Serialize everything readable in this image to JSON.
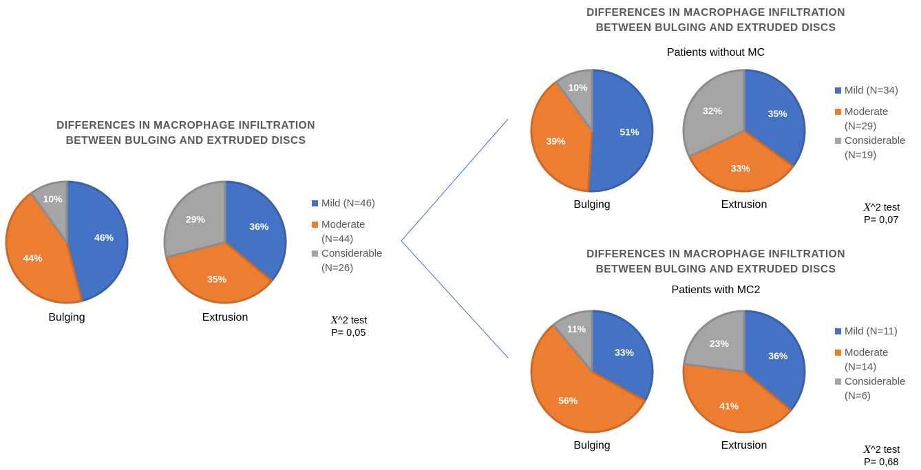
{
  "colors": {
    "mild": "#4472C4",
    "moderate": "#ED7D31",
    "considerable": "#A5A5A5"
  },
  "chart_data": [
    {
      "type": "pie",
      "title_line1": "DIFFERENCES IN MACROPHAGE INFILTRATION",
      "title_line2": "BETWEEN BULGING AND EXTRUDED DISCS",
      "subtitle": "",
      "pies": [
        {
          "name": "Bulging",
          "slices": [
            {
              "label": "Mild",
              "value": 46,
              "text": "46%"
            },
            {
              "label": "Moderate",
              "value": 44,
              "text": "44%"
            },
            {
              "label": "Considerable",
              "value": 10,
              "text": "10%"
            }
          ]
        },
        {
          "name": "Extrusion",
          "slices": [
            {
              "label": "Mild",
              "value": 36,
              "text": "36%"
            },
            {
              "label": "Moderate",
              "value": 35,
              "text": "35%"
            },
            {
              "label": "Considerable",
              "value": 29,
              "text": "29%"
            }
          ]
        }
      ],
      "legend": {
        "mild": "Mild (N=46)",
        "moderate_1": "Moderate",
        "moderate_2": "(N=44)",
        "considerable_1": "Considerable",
        "considerable_2": "(N=26)"
      },
      "test_label": "^2 test",
      "test_symbol": "X",
      "p_value": "P= 0,05"
    },
    {
      "type": "pie",
      "title_line1": "DIFFERENCES IN MACROPHAGE INFILTRATION",
      "title_line2": "BETWEEN BULGING AND EXTRUDED DISCS",
      "subtitle": "Patients without MC",
      "pies": [
        {
          "name": "Bulging",
          "slices": [
            {
              "label": "Mild",
              "value": 51,
              "text": "51%"
            },
            {
              "label": "Moderate",
              "value": 39,
              "text": "39%"
            },
            {
              "label": "Considerable",
              "value": 10,
              "text": "10%"
            }
          ]
        },
        {
          "name": "Extrusion",
          "slices": [
            {
              "label": "Mild",
              "value": 35,
              "text": "35%"
            },
            {
              "label": "Moderate",
              "value": 33,
              "text": "33%"
            },
            {
              "label": "Considerable",
              "value": 32,
              "text": "32%"
            }
          ]
        }
      ],
      "legend": {
        "mild": "Mild (N=34)",
        "moderate_1": "Moderate",
        "moderate_2": "(N=29)",
        "considerable_1": "Considerable",
        "considerable_2": "(N=19)"
      },
      "test_label": "^2 test",
      "test_symbol": "X",
      "p_value": "P= 0,07"
    },
    {
      "type": "pie",
      "title_line1": "DIFFERENCES IN MACROPHAGE INFILTRATION",
      "title_line2": "BETWEEN BULGING AND EXTRUDED DISCS",
      "subtitle": "Patients with MC2",
      "pies": [
        {
          "name": "Bulging",
          "slices": [
            {
              "label": "Mild",
              "value": 33,
              "text": "33%"
            },
            {
              "label": "Moderate",
              "value": 56,
              "text": "56%"
            },
            {
              "label": "Considerable",
              "value": 11,
              "text": "11%"
            }
          ]
        },
        {
          "name": "Extrusion",
          "slices": [
            {
              "label": "Mild",
              "value": 36,
              "text": "36%"
            },
            {
              "label": "Moderate",
              "value": 41,
              "text": "41%"
            },
            {
              "label": "Considerable",
              "value": 23,
              "text": "23%"
            }
          ]
        }
      ],
      "legend": {
        "mild": "Mild (N=11)",
        "moderate_1": "Moderate",
        "moderate_2": "(N=14)",
        "considerable_1": "Considerable",
        "considerable_2": "(N=6)"
      },
      "test_label": "^2 test",
      "test_symbol": "X",
      "p_value": "P= 0,68"
    }
  ]
}
